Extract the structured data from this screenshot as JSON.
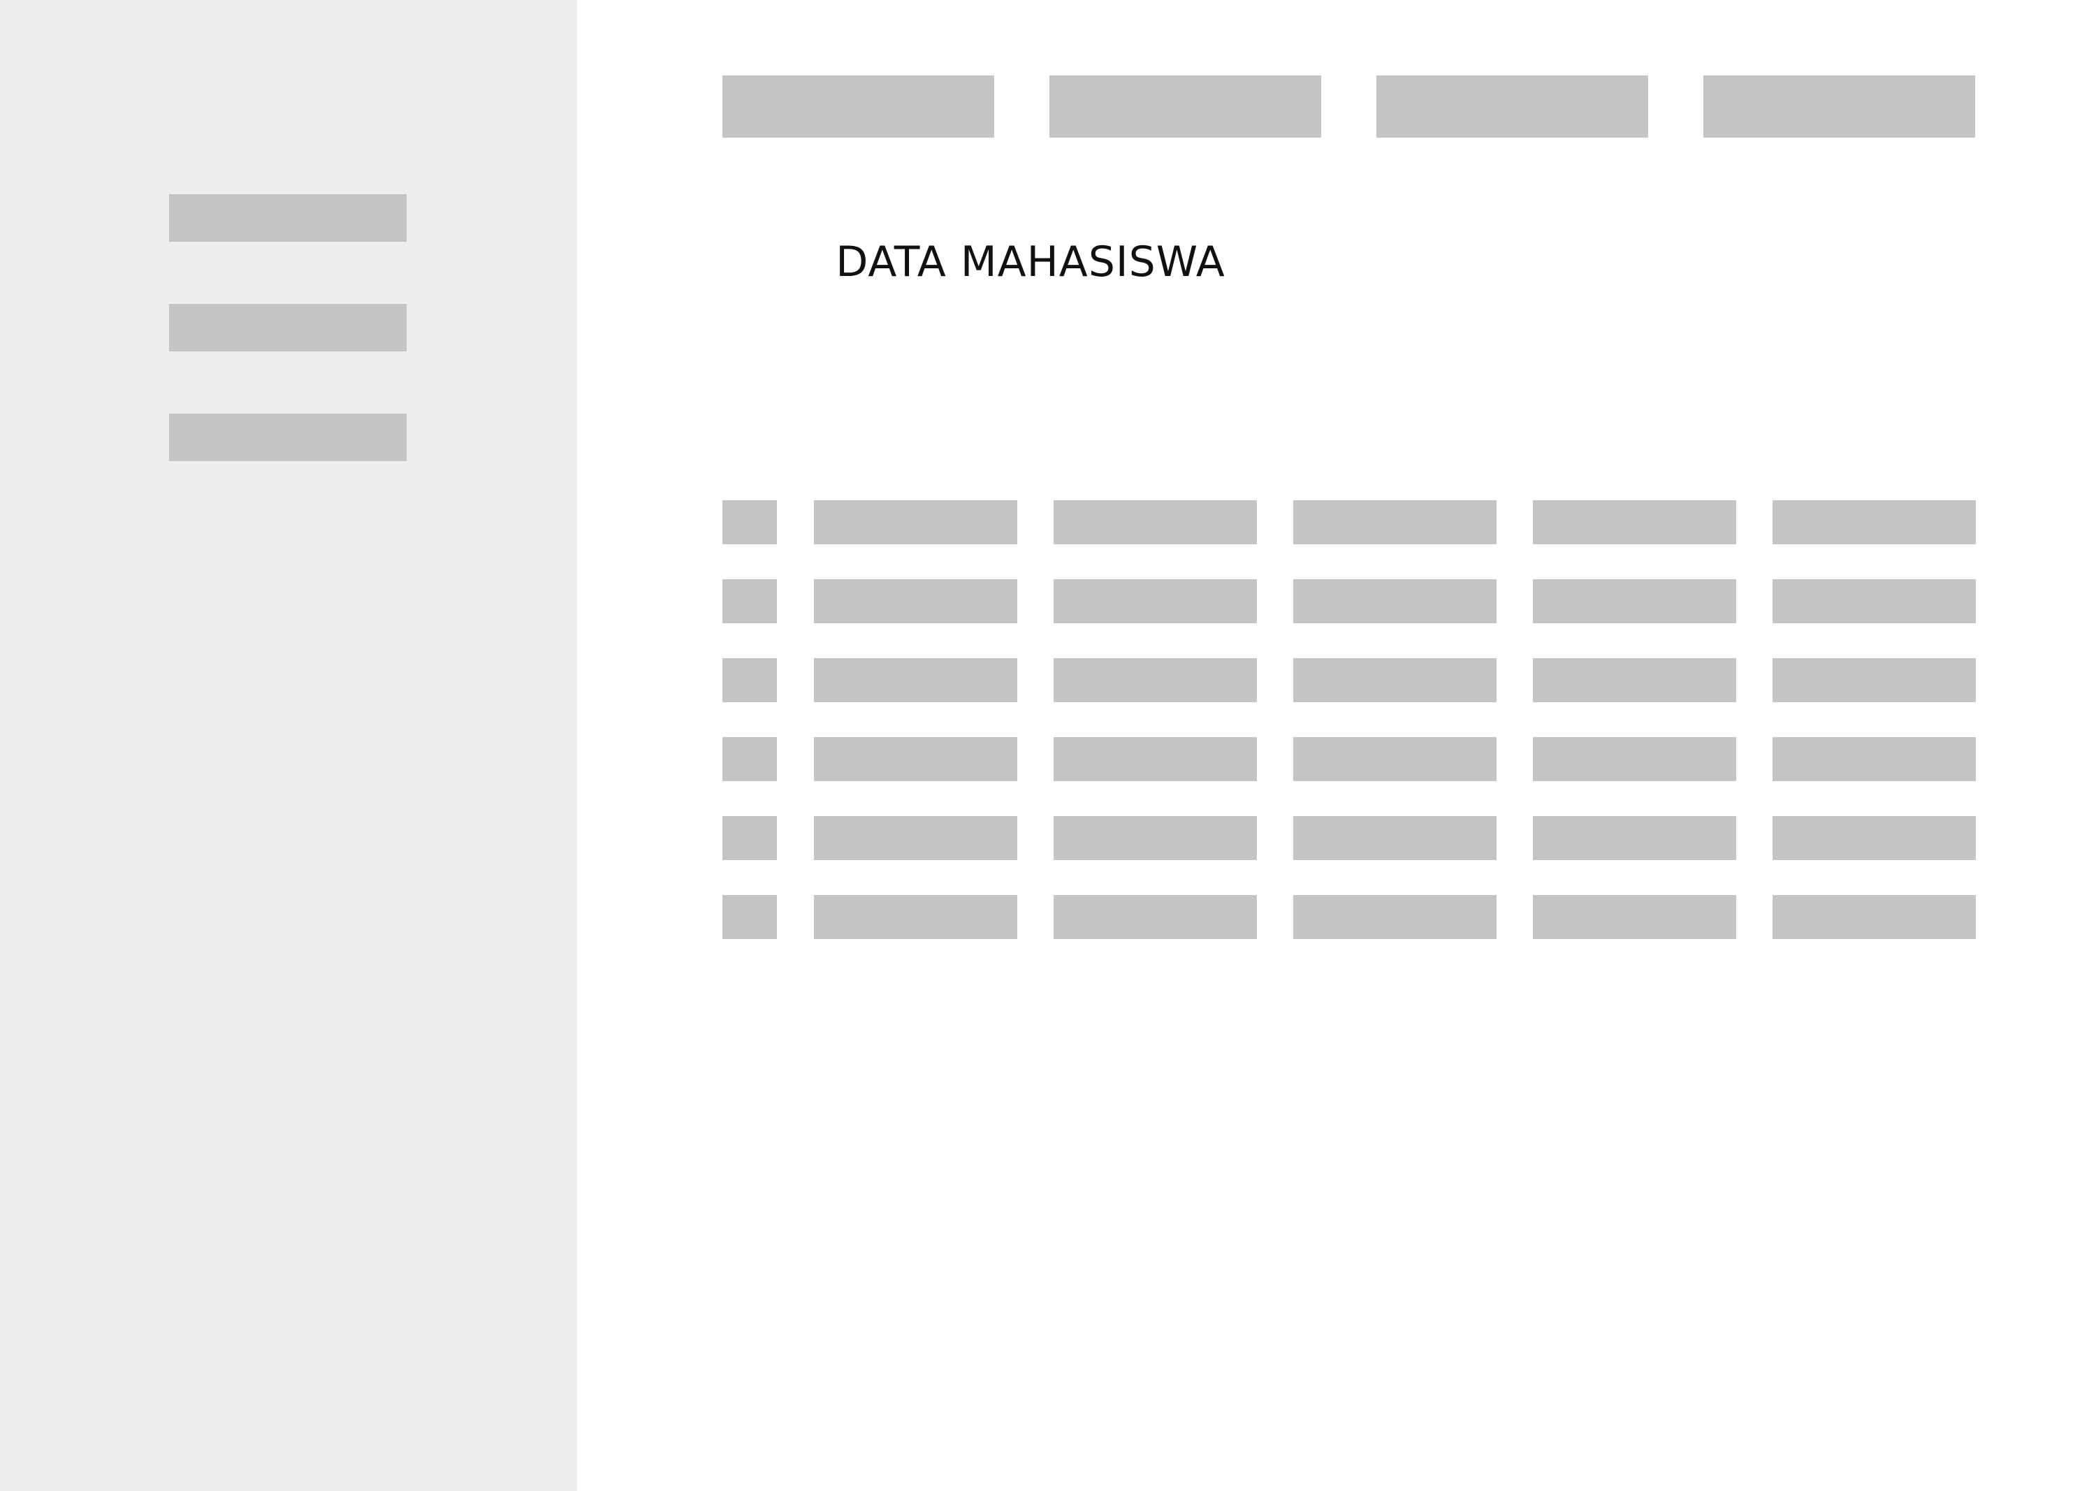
{
  "colors": {
    "sidebar_bg": "#efeeec",
    "placeholder": "#c4c4c4",
    "main_bg": "#ffffff",
    "title_text": "#111111"
  },
  "sidebar": {
    "items": [
      "",
      "",
      ""
    ]
  },
  "top_nav": {
    "items": [
      "",
      "",
      "",
      ""
    ]
  },
  "main": {
    "title": "DATA MAHASISWA"
  },
  "table": {
    "column_count": 6,
    "row_count": 6
  }
}
